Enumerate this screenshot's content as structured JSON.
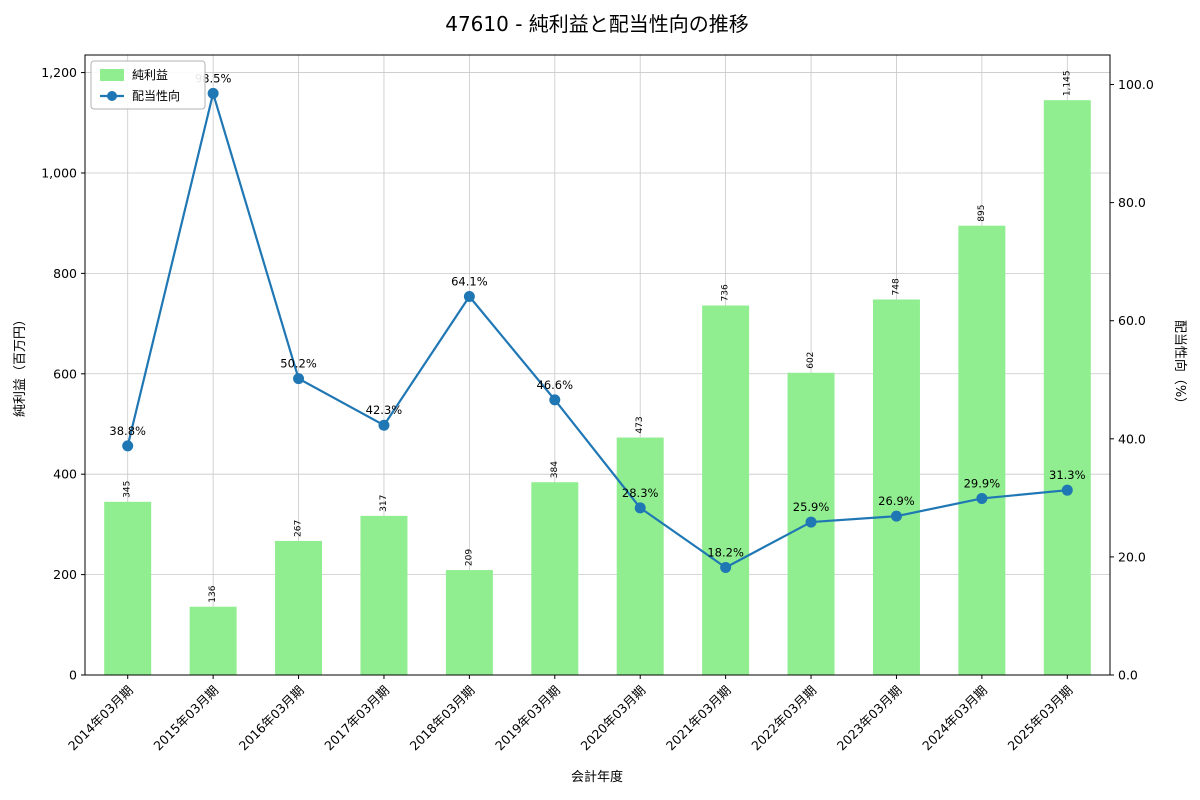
{
  "chart_data": {
    "type": "bar+line",
    "title": "47610 - 純利益と配当性向の推移",
    "xlabel": "会計年度",
    "ylabel_left": "純利益（百万円）",
    "ylabel_right": "配当性向（%）",
    "categories": [
      "2014年03月期",
      "2015年03月期",
      "2016年03月期",
      "2017年03月期",
      "2018年03月期",
      "2019年03月期",
      "2020年03月期",
      "2021年03月期",
      "2022年03月期",
      "2023年03月期",
      "2024年03月期",
      "2025年03月期"
    ],
    "series": [
      {
        "name": "純利益",
        "type": "bar",
        "color": "#90ee90",
        "values": [
          345,
          136,
          267,
          317,
          209,
          384,
          473,
          736,
          602,
          748,
          895,
          1145
        ],
        "labels": [
          "345",
          "136",
          "267",
          "317",
          "209",
          "384",
          "473",
          "736",
          "602",
          "748",
          "895",
          "1,145"
        ]
      },
      {
        "name": "配当性向",
        "type": "line",
        "color": "#1f77b4",
        "values": [
          38.8,
          98.5,
          50.2,
          42.3,
          64.1,
          46.6,
          28.3,
          18.2,
          25.9,
          26.9,
          29.9,
          31.3
        ],
        "labels": [
          "38.8%",
          "98.5%",
          "50.2%",
          "42.3%",
          "64.1%",
          "46.6%",
          "28.3%",
          "18.2%",
          "25.9%",
          "26.9%",
          "29.9%",
          "31.3%"
        ]
      }
    ],
    "left_axis": {
      "lim": [
        0,
        1235
      ],
      "ticks": [
        0,
        200,
        400,
        600,
        800,
        1000,
        1200
      ],
      "tick_labels": [
        "0",
        "200",
        "400",
        "600",
        "800",
        "1,000",
        "1,200"
      ]
    },
    "right_axis": {
      "lim": [
        0,
        105
      ],
      "ticks": [
        0,
        20,
        40,
        60,
        80,
        100
      ],
      "tick_labels": [
        "0.0",
        "20.0",
        "40.0",
        "60.0",
        "80.0",
        "100.0"
      ]
    },
    "legend": {
      "position": "top-left",
      "entries": [
        {
          "label": "純利益",
          "swatch": "patch",
          "color": "#90ee90"
        },
        {
          "label": "配当性向",
          "swatch": "line-marker",
          "color": "#1f77b4"
        }
      ]
    },
    "grid": true,
    "colors": {
      "bar": "#90ee90",
      "line": "#1f77b4",
      "grid": "#c8c8c8",
      "spine": "#000000"
    }
  }
}
